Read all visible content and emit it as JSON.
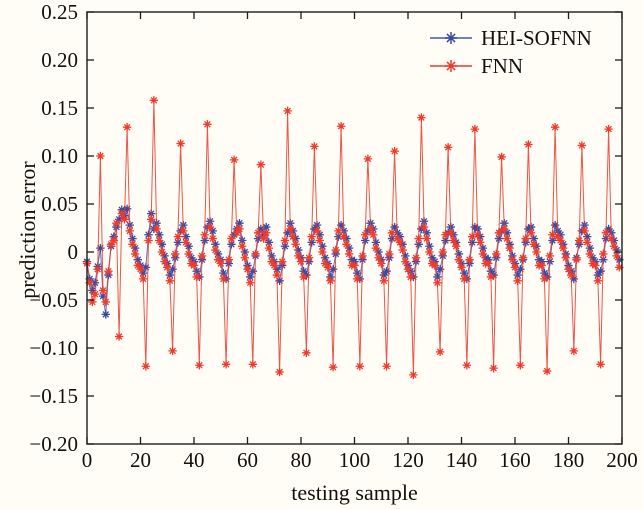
{
  "figure": {
    "background": "#fffdf6",
    "axis_color": "#1c1c1c",
    "tick_label_color": "#111111",
    "tick_length": 7
  },
  "chart_data": {
    "type": "line",
    "title": "",
    "xlabel": "testing sample",
    "ylabel": "prediction error",
    "xlim": [
      0,
      200
    ],
    "ylim": [
      -0.2,
      0.25
    ],
    "xticks": [
      0,
      20,
      40,
      60,
      80,
      100,
      120,
      140,
      160,
      180,
      200
    ],
    "yticks": [
      -0.2,
      -0.15,
      -0.1,
      -0.05,
      0,
      0.05,
      0.1,
      0.15,
      0.2,
      0.25
    ],
    "grid": false,
    "legend_position": "top-right-inside",
    "marker": "asterisk",
    "x_start": 0,
    "x_step": 1,
    "series": [
      {
        "name": "HEI-SOFNN",
        "color": "#4656a8",
        "marker_color": "#3a49a2",
        "values": [
          -0.01,
          -0.028,
          -0.04,
          -0.032,
          -0.015,
          0.004,
          -0.046,
          -0.065,
          -0.024,
          0.006,
          0.016,
          0.026,
          0.034,
          0.044,
          0.038,
          0.045,
          0.028,
          0.014,
          0.004,
          -0.008,
          -0.014,
          -0.022,
          -0.016,
          0.018,
          0.04,
          0.024,
          0.03,
          0.018,
          0.008,
          -0.004,
          -0.012,
          -0.024,
          -0.018,
          -0.006,
          0.01,
          0.022,
          0.028,
          0.016,
          0.006,
          -0.006,
          -0.01,
          -0.02,
          -0.026,
          -0.008,
          0.012,
          0.026,
          0.032,
          0.022,
          0.008,
          -0.002,
          -0.008,
          -0.022,
          -0.028,
          -0.012,
          0.008,
          0.018,
          0.024,
          0.03,
          0.012,
          0.0,
          -0.014,
          -0.026,
          -0.02,
          -0.004,
          0.014,
          0.024,
          0.018,
          0.026,
          0.01,
          -0.004,
          -0.01,
          -0.018,
          -0.03,
          -0.014,
          0.006,
          0.02,
          0.03,
          0.022,
          0.014,
          0.002,
          -0.006,
          -0.02,
          -0.024,
          -0.01,
          0.01,
          0.024,
          0.028,
          0.018,
          0.006,
          -0.006,
          -0.012,
          -0.026,
          -0.018,
          -0.002,
          0.016,
          0.028,
          0.022,
          0.014,
          0.004,
          -0.008,
          -0.01,
          -0.022,
          -0.028,
          -0.008,
          0.012,
          0.022,
          0.03,
          0.024,
          0.01,
          0.0,
          -0.008,
          -0.024,
          -0.02,
          -0.006,
          0.014,
          0.026,
          0.02,
          0.016,
          0.008,
          -0.004,
          -0.014,
          -0.02,
          -0.026,
          -0.01,
          0.008,
          0.024,
          0.032,
          0.02,
          0.006,
          -0.006,
          -0.01,
          -0.026,
          -0.018,
          -0.004,
          0.012,
          0.02,
          0.026,
          0.018,
          0.01,
          -0.002,
          -0.012,
          -0.022,
          -0.028,
          -0.012,
          0.01,
          0.026,
          0.024,
          0.016,
          0.004,
          -0.006,
          -0.008,
          -0.02,
          -0.024,
          -0.006,
          0.014,
          0.022,
          0.03,
          0.02,
          0.008,
          -0.004,
          -0.012,
          -0.024,
          -0.018,
          -0.008,
          0.01,
          0.024,
          0.026,
          0.014,
          0.006,
          -0.008,
          -0.01,
          -0.022,
          -0.026,
          -0.01,
          0.012,
          0.028,
          0.022,
          0.018,
          0.008,
          -0.002,
          -0.014,
          -0.02,
          -0.028,
          -0.006,
          0.008,
          0.022,
          0.028,
          0.016,
          0.004,
          -0.006,
          -0.01,
          -0.024,
          -0.02,
          -0.008,
          0.014,
          0.024,
          0.02,
          0.012,
          0.002,
          -0.008
        ]
      },
      {
        "name": "FNN",
        "color": "#e8392c",
        "marker_color": "#ef3a2c",
        "values": [
          -0.012,
          -0.032,
          -0.052,
          -0.044,
          -0.018,
          0.1,
          -0.04,
          -0.052,
          -0.02,
          0.008,
          0.012,
          0.03,
          -0.088,
          0.04,
          0.034,
          0.13,
          0.022,
          0.008,
          -0.002,
          -0.014,
          -0.018,
          -0.028,
          -0.119,
          0.012,
          0.034,
          0.158,
          0.024,
          0.012,
          0.0,
          -0.01,
          -0.016,
          -0.03,
          -0.103,
          -0.002,
          0.016,
          0.113,
          0.022,
          0.01,
          -0.002,
          -0.012,
          -0.014,
          -0.026,
          -0.118,
          -0.004,
          0.018,
          0.133,
          0.026,
          0.014,
          0.002,
          -0.008,
          -0.012,
          -0.028,
          -0.117,
          -0.008,
          0.014,
          0.096,
          0.02,
          0.024,
          0.006,
          -0.006,
          -0.018,
          -0.032,
          -0.117,
          -0.002,
          0.02,
          0.091,
          0.014,
          0.02,
          0.004,
          -0.01,
          -0.014,
          -0.024,
          -0.125,
          -0.01,
          0.012,
          0.147,
          0.024,
          0.016,
          0.008,
          -0.004,
          -0.01,
          -0.026,
          -0.105,
          -0.006,
          0.016,
          0.11,
          0.022,
          0.012,
          0.0,
          -0.012,
          -0.016,
          -0.03,
          -0.12,
          0.002,
          0.022,
          0.131,
          0.016,
          0.008,
          -0.002,
          -0.014,
          -0.014,
          -0.028,
          -0.119,
          -0.004,
          0.018,
          0.097,
          0.024,
          0.018,
          0.004,
          -0.006,
          -0.012,
          -0.03,
          -0.119,
          -0.002,
          0.02,
          0.105,
          0.014,
          0.01,
          0.002,
          -0.01,
          -0.018,
          -0.026,
          -0.128,
          -0.006,
          0.014,
          0.14,
          0.026,
          0.014,
          0.0,
          -0.012,
          -0.014,
          -0.032,
          -0.104,
          0.0,
          0.018,
          0.109,
          0.02,
          0.012,
          0.006,
          -0.008,
          -0.016,
          -0.028,
          -0.118,
          -0.008,
          0.016,
          0.128,
          0.018,
          0.01,
          -0.002,
          -0.012,
          -0.012,
          -0.026,
          -0.121,
          -0.002,
          0.02,
          0.099,
          0.024,
          0.014,
          0.004,
          -0.008,
          -0.016,
          -0.03,
          -0.118,
          -0.006,
          0.014,
          0.112,
          0.02,
          0.008,
          0.0,
          -0.014,
          -0.014,
          -0.028,
          -0.124,
          -0.004,
          0.018,
          0.13,
          0.016,
          0.012,
          0.004,
          -0.006,
          -0.018,
          -0.024,
          -0.103,
          -0.008,
          0.012,
          0.111,
          0.022,
          0.01,
          -0.002,
          -0.012,
          -0.014,
          -0.03,
          -0.117,
          -0.002,
          0.02,
          0.128,
          0.014,
          0.006,
          -0.004,
          -0.016
        ]
      }
    ]
  }
}
